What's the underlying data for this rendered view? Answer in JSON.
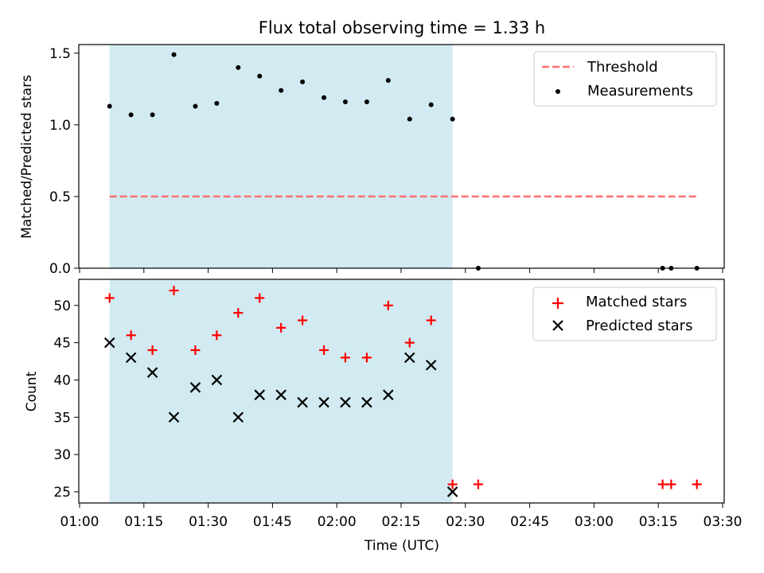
{
  "chart_data": {
    "title": "Flux total observing time = 1.33 h",
    "xlabel": "Time (UTC)",
    "x_ticks": [
      "01:00",
      "01:15",
      "01:30",
      "01:45",
      "02:00",
      "02:15",
      "02:30",
      "02:45",
      "03:00",
      "03:15",
      "03:30"
    ],
    "highlight_span": [
      "01:07",
      "02:27"
    ],
    "highlight_color": "#add8e6",
    "top": {
      "type": "scatter",
      "ylabel": "Matched/Predicted stars",
      "ylim": [
        0,
        1.56
      ],
      "y_ticks": [
        "0.0",
        "0.5",
        "1.0",
        "1.5"
      ],
      "legend_position": "top-right",
      "threshold": {
        "name": "Threshold",
        "value": 0.5,
        "x_range": [
          "01:07",
          "03:24"
        ],
        "color": "#ff7070"
      },
      "measurements": {
        "name": "Measurements",
        "color": "#000000",
        "points": [
          [
            "01:07",
            1.13
          ],
          [
            "01:12",
            1.07
          ],
          [
            "01:17",
            1.07
          ],
          [
            "01:22",
            1.49
          ],
          [
            "01:27",
            1.13
          ],
          [
            "01:32",
            1.15
          ],
          [
            "01:37",
            1.4
          ],
          [
            "01:42",
            1.34
          ],
          [
            "01:47",
            1.24
          ],
          [
            "01:52",
            1.3
          ],
          [
            "01:57",
            1.19
          ],
          [
            "02:02",
            1.16
          ],
          [
            "02:07",
            1.16
          ],
          [
            "02:12",
            1.31
          ],
          [
            "02:17",
            1.04
          ],
          [
            "02:22",
            1.14
          ],
          [
            "02:27",
            1.04
          ],
          [
            "02:33",
            0.0
          ],
          [
            "03:16",
            0.0
          ],
          [
            "03:18",
            0.0
          ],
          [
            "03:24",
            0.0
          ]
        ]
      }
    },
    "bottom": {
      "type": "scatter",
      "ylabel": "Count",
      "ylim": [
        23.5,
        53.5
      ],
      "y_ticks": [
        "25",
        "30",
        "35",
        "40",
        "45",
        "50"
      ],
      "legend_position": "top-right",
      "matched": {
        "name": "Matched stars",
        "color": "#ff0000",
        "points": [
          [
            "01:07",
            51
          ],
          [
            "01:12",
            46
          ],
          [
            "01:17",
            44
          ],
          [
            "01:22",
            52
          ],
          [
            "01:27",
            44
          ],
          [
            "01:32",
            46
          ],
          [
            "01:37",
            49
          ],
          [
            "01:42",
            51
          ],
          [
            "01:47",
            47
          ],
          [
            "01:52",
            48
          ],
          [
            "01:57",
            44
          ],
          [
            "02:02",
            43
          ],
          [
            "02:07",
            43
          ],
          [
            "02:12",
            50
          ],
          [
            "02:17",
            45
          ],
          [
            "02:22",
            48
          ],
          [
            "02:27",
            26
          ],
          [
            "02:33",
            26
          ],
          [
            "03:16",
            26
          ],
          [
            "03:18",
            26
          ],
          [
            "03:24",
            26
          ]
        ]
      },
      "predicted": {
        "name": "Predicted stars",
        "color": "#000000",
        "points": [
          [
            "01:07",
            45
          ],
          [
            "01:12",
            43
          ],
          [
            "01:17",
            41
          ],
          [
            "01:22",
            35
          ],
          [
            "01:27",
            39
          ],
          [
            "01:32",
            40
          ],
          [
            "01:37",
            35
          ],
          [
            "01:42",
            38
          ],
          [
            "01:47",
            38
          ],
          [
            "01:52",
            37
          ],
          [
            "01:57",
            37
          ],
          [
            "02:02",
            37
          ],
          [
            "02:07",
            37
          ],
          [
            "02:12",
            38
          ],
          [
            "02:17",
            43
          ],
          [
            "02:22",
            42
          ],
          [
            "02:27",
            25
          ]
        ]
      }
    }
  }
}
